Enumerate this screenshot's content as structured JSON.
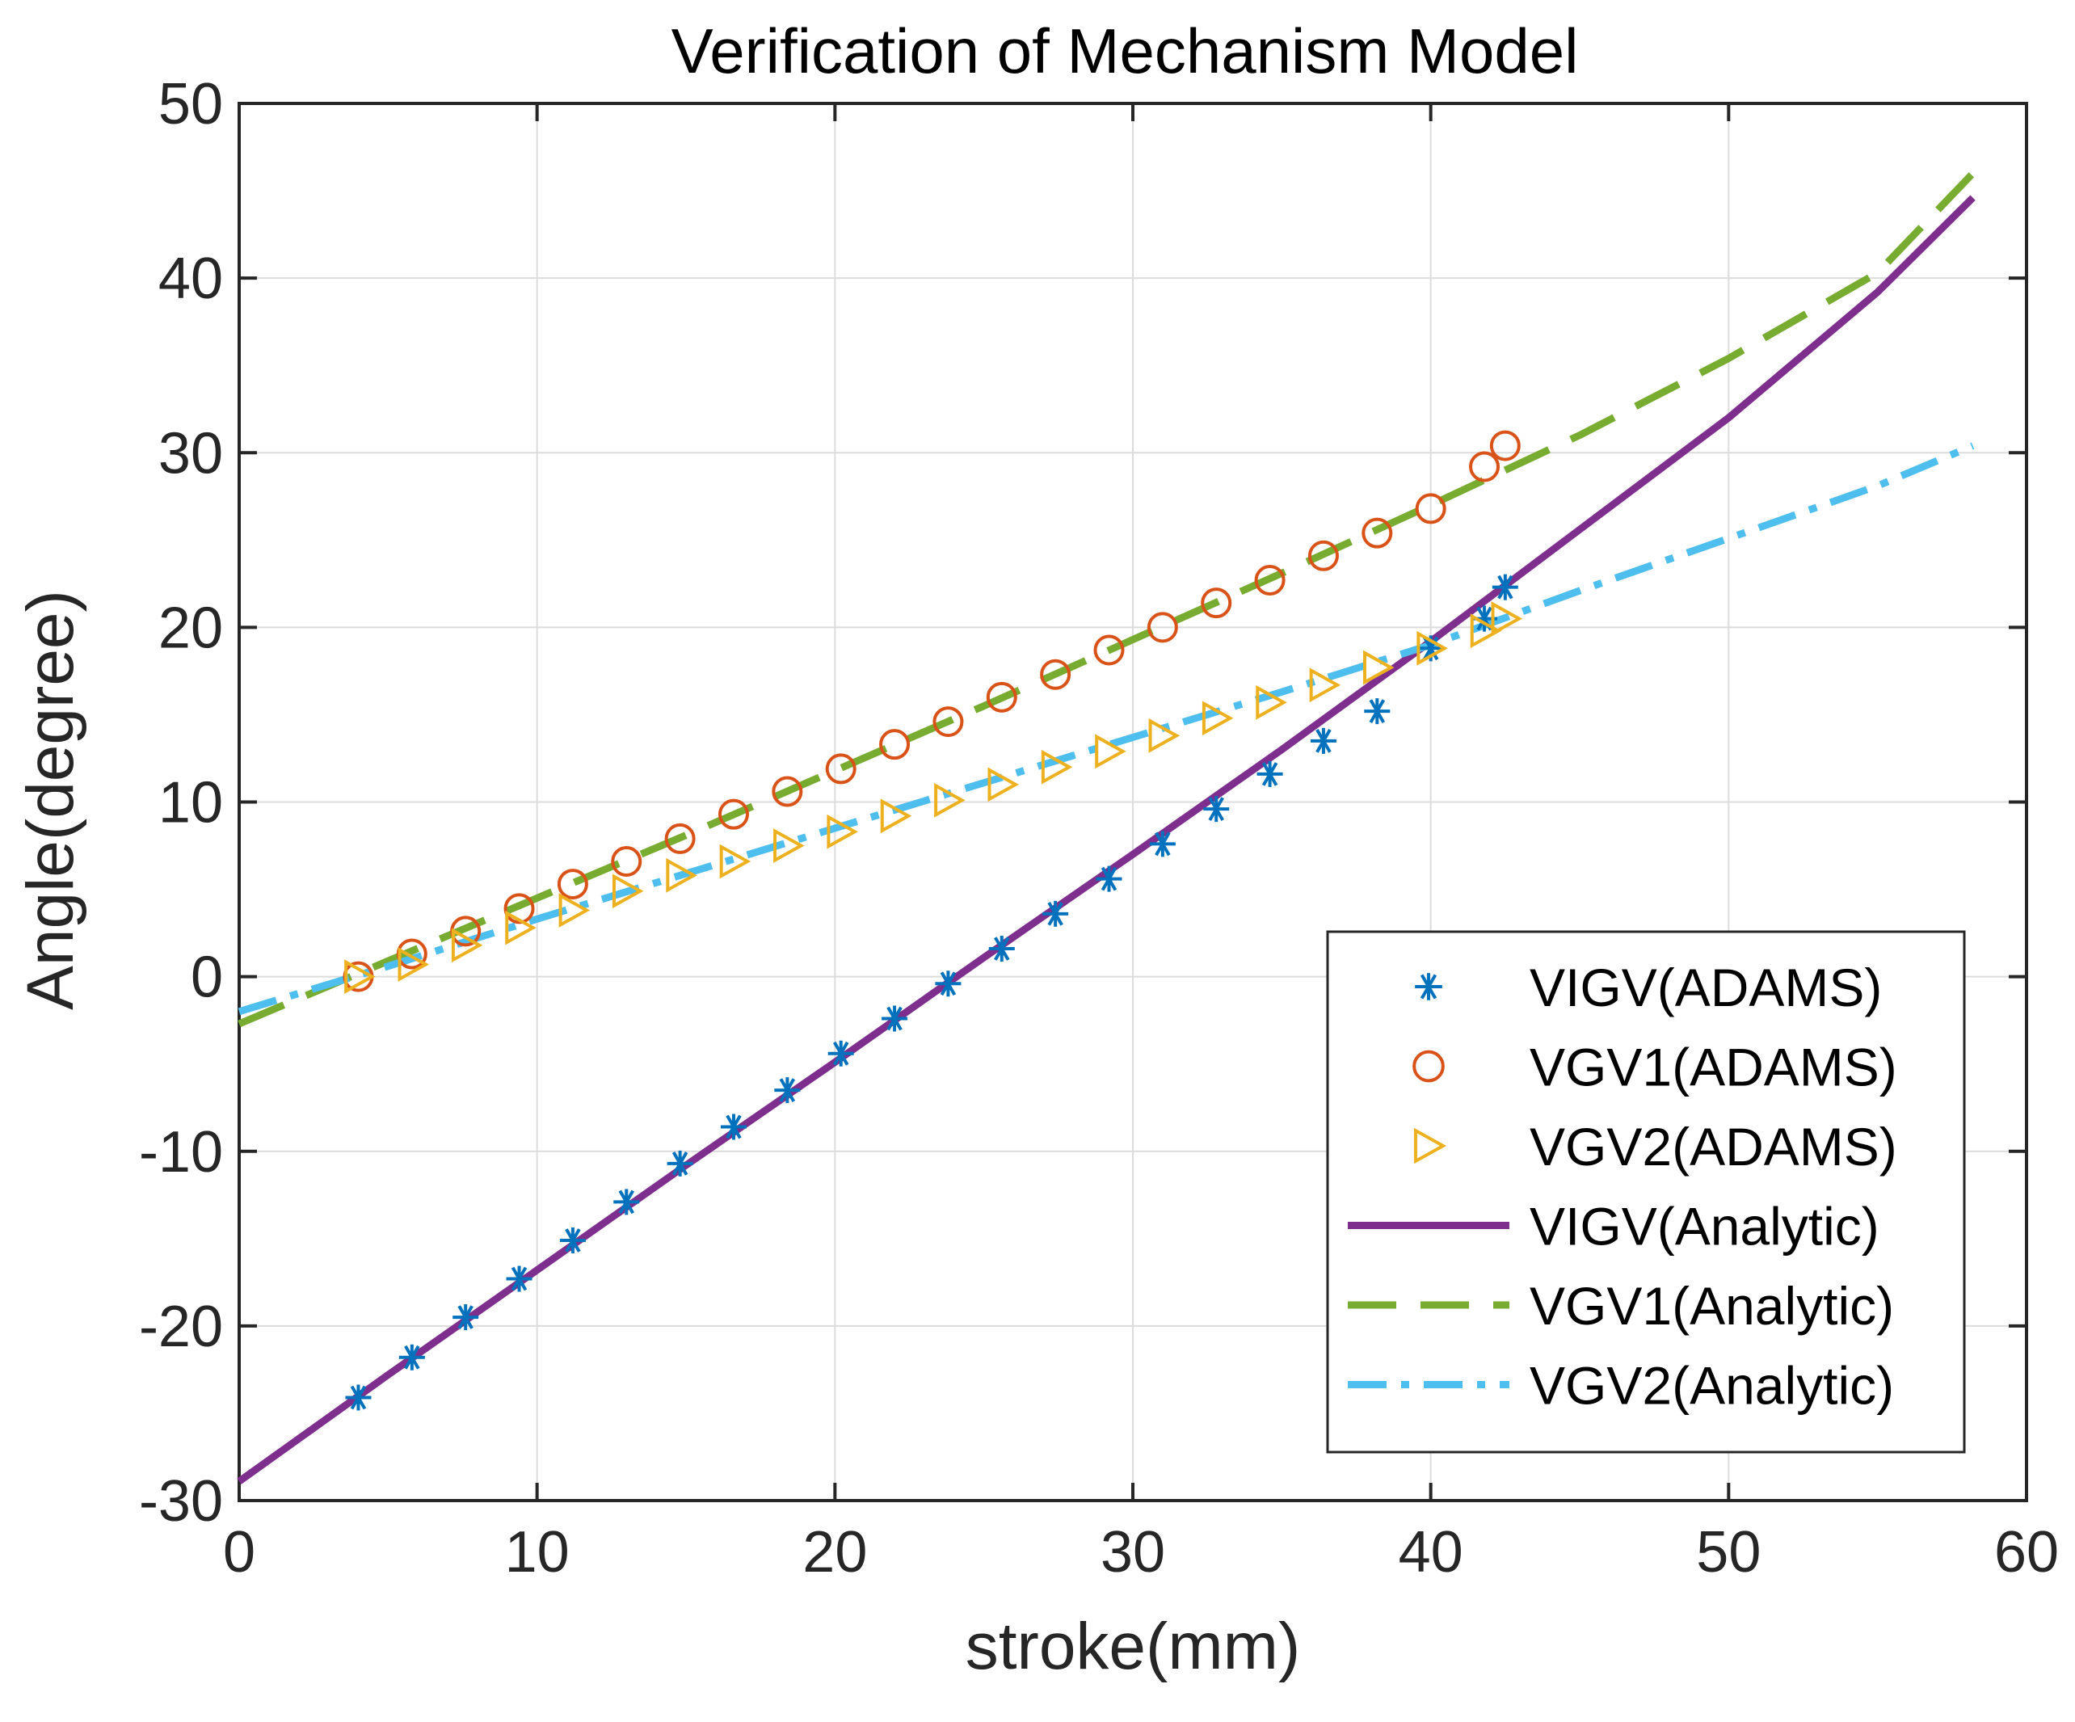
{
  "chart_data": {
    "type": "line",
    "title": "Verification of Mechanism Model",
    "xlabel": "stroke(mm)",
    "ylabel": "Angle(degree)",
    "xlim": [
      0,
      60
    ],
    "ylim": [
      -30,
      50
    ],
    "xticks": [
      0,
      10,
      20,
      30,
      40,
      50,
      60
    ],
    "yticks": [
      -30,
      -20,
      -10,
      0,
      10,
      20,
      30,
      40,
      50
    ],
    "grid": true,
    "legend_position": "lower-right",
    "series": [
      {
        "name": "VIGV(ADAMS)",
        "kind": "markers",
        "marker": "asterisk",
        "color": "#0072BD",
        "x": [
          4.0,
          5.8,
          7.6,
          9.4,
          11.2,
          13.0,
          14.8,
          16.6,
          18.4,
          20.2,
          22.0,
          23.8,
          25.6,
          27.4,
          29.2,
          31.0,
          32.8,
          34.6,
          36.4,
          38.2,
          40.0,
          41.8,
          42.5
        ],
        "y": [
          -24.1,
          -21.8,
          -19.5,
          -17.3,
          -15.1,
          -12.9,
          -10.7,
          -8.6,
          -6.5,
          -4.4,
          -2.4,
          -0.4,
          1.6,
          3.6,
          5.6,
          7.6,
          9.6,
          11.6,
          13.5,
          15.2,
          18.8,
          20.5,
          22.3
        ]
      },
      {
        "name": "VGV1(ADAMS)",
        "kind": "markers",
        "marker": "circle",
        "color": "#D95319",
        "x": [
          4.0,
          5.8,
          7.6,
          9.4,
          11.2,
          13.0,
          14.8,
          16.6,
          18.4,
          20.2,
          22.0,
          23.8,
          25.6,
          27.4,
          29.2,
          31.0,
          32.8,
          34.6,
          36.4,
          38.2,
          40.0,
          41.8,
          42.5
        ],
        "y": [
          0.0,
          1.3,
          2.6,
          3.9,
          5.3,
          6.6,
          7.9,
          9.3,
          10.6,
          11.9,
          13.3,
          14.6,
          16.0,
          17.3,
          18.7,
          20.0,
          21.4,
          22.7,
          24.1,
          25.4,
          26.8,
          29.2,
          30.4
        ]
      },
      {
        "name": "VGV2(ADAMS)",
        "kind": "markers",
        "marker": "triangle-right",
        "color": "#EDB120",
        "x": [
          4.0,
          5.8,
          7.6,
          9.4,
          11.2,
          13.0,
          14.8,
          16.6,
          18.4,
          20.2,
          22.0,
          23.8,
          25.6,
          27.4,
          29.2,
          31.0,
          32.8,
          34.6,
          36.4,
          38.2,
          40.0,
          41.8,
          42.5
        ],
        "y": [
          0.0,
          0.7,
          1.8,
          2.8,
          3.8,
          4.9,
          5.8,
          6.6,
          7.5,
          8.3,
          9.2,
          10.1,
          11.0,
          12.0,
          12.9,
          13.8,
          14.8,
          15.7,
          16.7,
          17.7,
          18.8,
          19.8,
          20.5
        ]
      },
      {
        "name": "VIGV(Analytic)",
        "kind": "line",
        "dash": "solid",
        "color": "#7E2F8E",
        "x": [
          0,
          5,
          10,
          15,
          20,
          25,
          30,
          35,
          40,
          45,
          50,
          55,
          58.2
        ],
        "y": [
          -28.9,
          -22.8,
          -16.8,
          -10.8,
          -4.9,
          1.1,
          7.0,
          13.0,
          19.2,
          25.6,
          32.0,
          39.2,
          44.6
        ]
      },
      {
        "name": "VGV1(Analytic)",
        "kind": "line",
        "dash": "dashed",
        "color": "#77AC30",
        "x": [
          0,
          5,
          10,
          15,
          20,
          25,
          30,
          35,
          40,
          45,
          50,
          55,
          58.2
        ],
        "y": [
          -2.7,
          0.9,
          4.5,
          8.1,
          11.8,
          15.5,
          19.3,
          23.1,
          27.0,
          31.0,
          35.4,
          40.3,
          46.0
        ]
      },
      {
        "name": "VGV2(Analytic)",
        "kind": "line",
        "dash": "dash-dot",
        "color": "#4DBEEE",
        "x": [
          0,
          5,
          10,
          15,
          20,
          25,
          30,
          35,
          40,
          45,
          50,
          55,
          58.2
        ],
        "y": [
          -2.0,
          0.6,
          3.3,
          5.9,
          8.5,
          11.1,
          13.7,
          16.3,
          19.0,
          22.1,
          25.1,
          28.1,
          30.4
        ]
      }
    ]
  }
}
